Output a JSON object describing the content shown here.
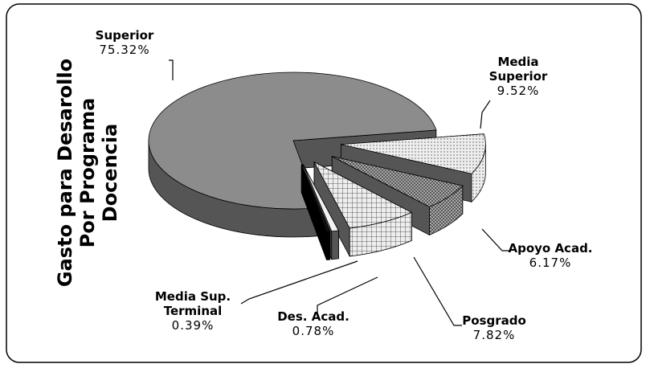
{
  "chart_data": {
    "type": "pie",
    "title": [
      "Gasto para Desarollo",
      "Por Programa",
      "Docencia"
    ],
    "categories": [
      "Superior",
      "Media Superior",
      "Apoyo Acad.",
      "Posgrado",
      "Des. Acad.",
      "Media Sup. Terminal"
    ],
    "values": [
      75.32,
      9.52,
      6.17,
      7.82,
      0.78,
      0.39
    ],
    "value_labels": [
      "75.32%",
      "9.52%",
      "6.17%",
      "7.82%",
      "0.78%",
      "0.39%"
    ],
    "colors": [
      "#8c8c8c",
      "#e6e6e6",
      "#9a9a9a",
      "#c8c8c8",
      "#f2f2f2",
      "#111111"
    ]
  }
}
